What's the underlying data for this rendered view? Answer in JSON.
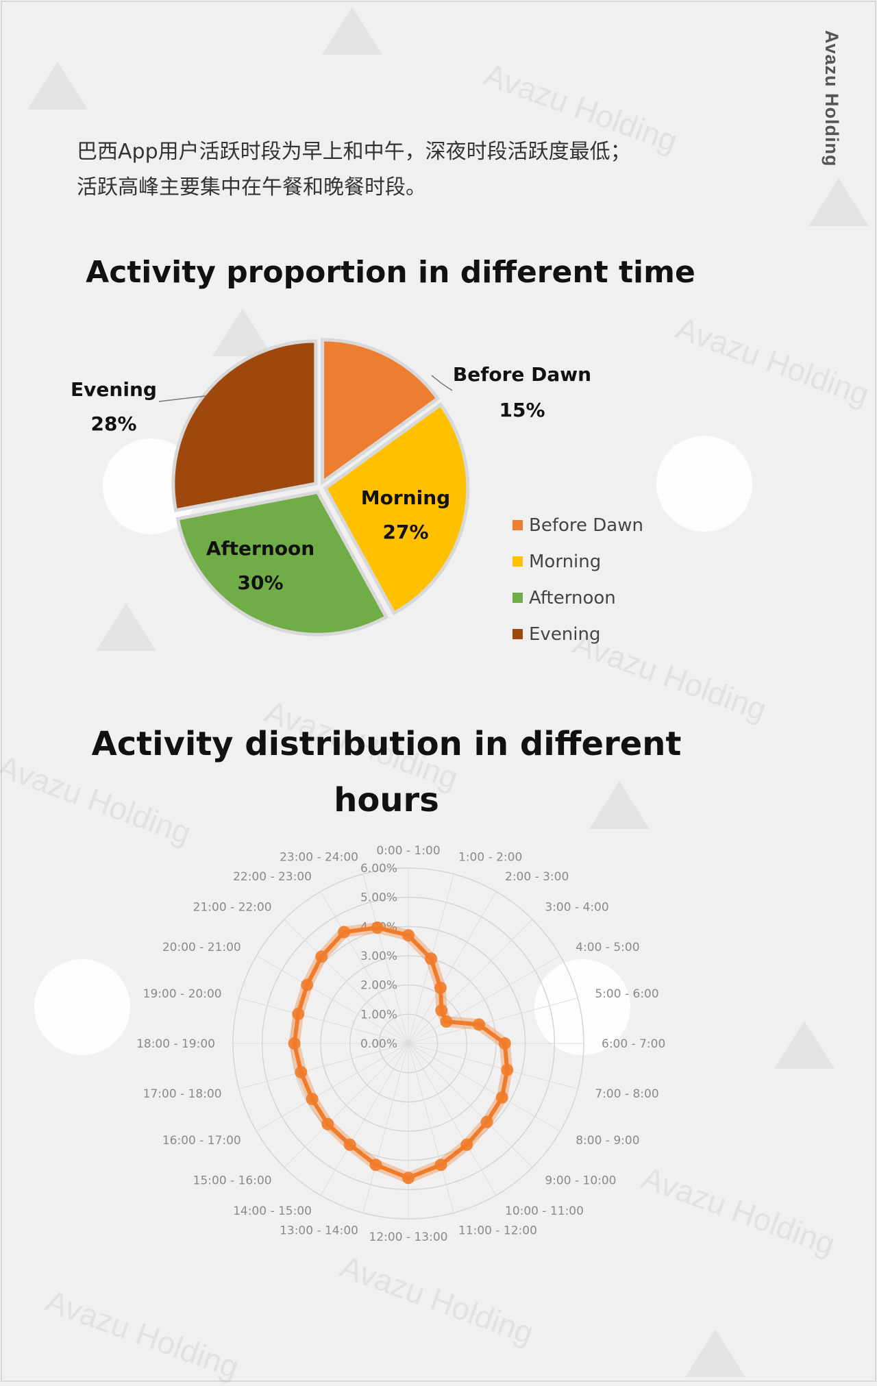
{
  "brand": "Avazu Holding",
  "intro": {
    "line1": "巴西App用户活跃时段为早上和中午，深夜时段活跃度最低；",
    "line2": "活跃高峰主要集中在午餐和晚餐时段。"
  },
  "watermark_text": "Avazu Holding",
  "colors": {
    "before_dawn": "#ED7D31",
    "morning": "#FFC000",
    "afternoon": "#70AD47",
    "evening": "#9E480E",
    "radar_line": "#F07C2A"
  },
  "chart_data": [
    {
      "type": "pie",
      "title": "Activity proportion in different time",
      "slices": [
        {
          "label": "Before Dawn",
          "value": 15,
          "value_label": "15%",
          "color": "#ED7D31"
        },
        {
          "label": "Morning",
          "value": 27,
          "value_label": "27%",
          "color": "#FFC000"
        },
        {
          "label": "Afternoon",
          "value": 30,
          "value_label": "30%",
          "color": "#70AD47"
        },
        {
          "label": "Evening",
          "value": 28,
          "value_label": "28%",
          "color": "#9E480E"
        }
      ],
      "legend": [
        "Before Dawn",
        "Morning",
        "Afternoon",
        "Evening"
      ],
      "legend_position": "right"
    },
    {
      "type": "radar",
      "title_line1": "Activity distribution in different",
      "title_line2": "hours",
      "categories": [
        "0:00 - 1:00",
        "1:00 - 2:00",
        "2:00 - 3:00",
        "3:00 - 4:00",
        "4:00 - 5:00",
        "5:00 - 6:00",
        "6:00 - 7:00",
        "7:00 - 8:00",
        "8:00 - 9:00",
        "9:00 - 10:00",
        "10:00 - 11:00",
        "11:00 - 12:00",
        "12:00 - 13:00",
        "13:00 - 14:00",
        "14:00 - 15:00",
        "15:00 - 16:00",
        "16:00 - 17:00",
        "17:00 - 18:00",
        "18:00 - 19:00",
        "19:00 - 20:00",
        "20:00 - 21:00",
        "21:00 - 22:00",
        "22:00 - 23:00",
        "23:00 - 24:00"
      ],
      "values": [
        3.7,
        3.0,
        2.2,
        1.6,
        1.5,
        2.5,
        3.3,
        3.5,
        3.7,
        3.8,
        4.0,
        4.3,
        4.6,
        4.3,
        4.0,
        3.9,
        3.8,
        3.8,
        3.9,
        3.9,
        4.0,
        4.2,
        4.4,
        4.1
      ],
      "ticks": [
        "0.00%",
        "1.00%",
        "2.00%",
        "3.00%",
        "4.00%",
        "5.00%",
        "6.00%"
      ],
      "rmax": 6
    }
  ]
}
